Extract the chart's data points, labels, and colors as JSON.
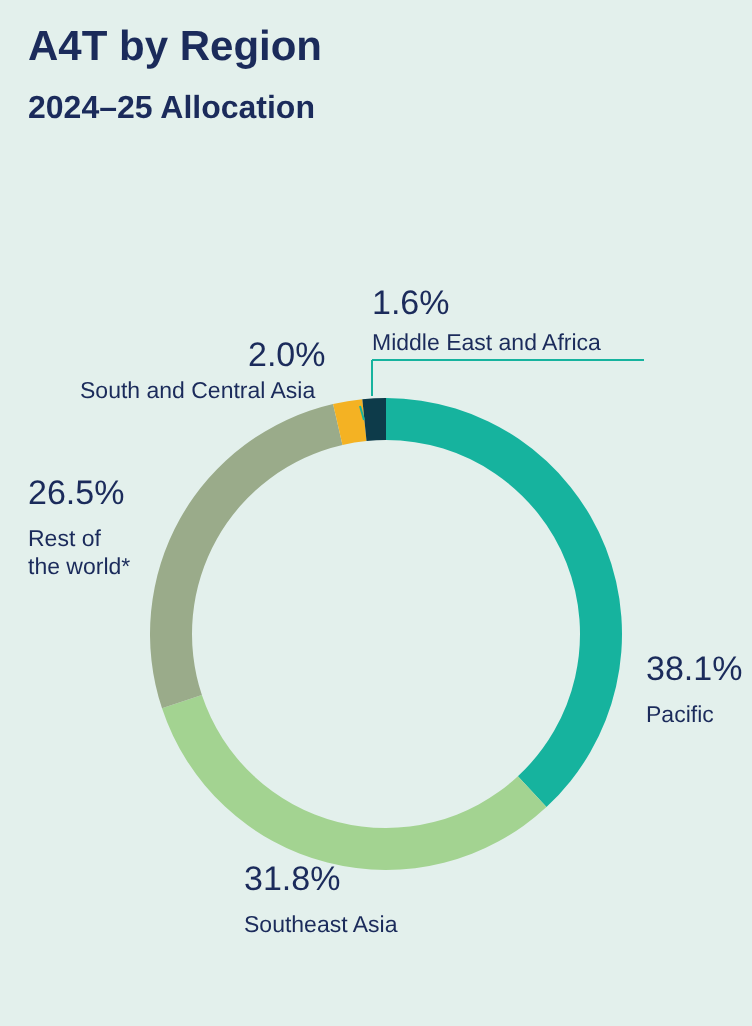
{
  "chart_data": {
    "type": "donut",
    "title": "A4T by Region",
    "subtitle": "2024–25 Allocation",
    "categories": [
      "Pacific",
      "Southeast  Asia",
      "Rest of the world*",
      "South and Central Asia",
      "Middle East and Africa"
    ],
    "values": [
      38.1,
      31.8,
      26.5,
      2.0,
      1.6
    ],
    "colors": [
      "#16b39e",
      "#a3d391",
      "#9aab8a",
      "#f4b223",
      "#0d3b4a"
    ],
    "value_labels": [
      "38.1%",
      "31.8%",
      "26.5%",
      "2.0%",
      "1.6%"
    ]
  }
}
